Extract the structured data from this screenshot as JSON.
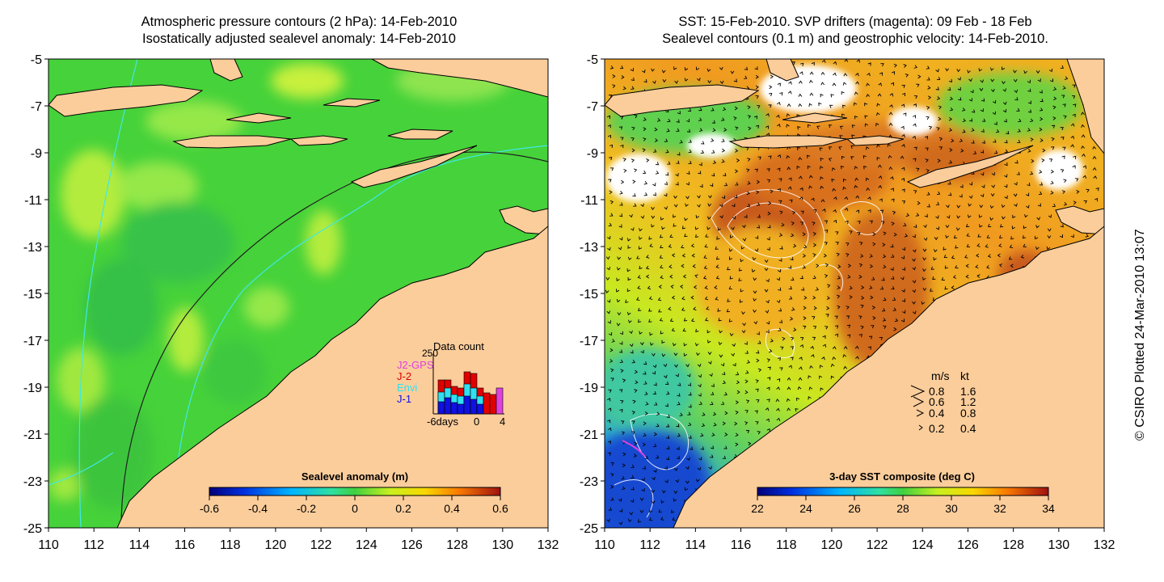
{
  "left_panel": {
    "title_line1": "Atmospheric pressure contours (2 hPa): 14-Feb-2010",
    "title_line2": "Isostatically adjusted sealevel anomaly: 14-Feb-2010",
    "colorbar": {
      "label": "Sealevel anomaly (m)",
      "ticks": [
        "-0.6",
        "-0.4",
        "-0.2",
        "0",
        "0.2",
        "0.4",
        "0.6"
      ],
      "range": [
        -0.6,
        0.6
      ]
    },
    "inset": {
      "top_value": "250",
      "title": "Data count",
      "legend": [
        {
          "name": "J2-GPS",
          "color": "#e040e0"
        },
        {
          "name": "J-2",
          "color": "#e00000"
        },
        {
          "name": "Envi",
          "color": "#30e0f0"
        },
        {
          "name": "J-1",
          "color": "#1010e0"
        }
      ],
      "x_labels": [
        "-6days",
        "0",
        "4"
      ]
    }
  },
  "right_panel": {
    "title_line1": "SST: 15-Feb-2010. SVP drifters (magenta): 09 Feb - 18 Feb",
    "title_line2": "Sealevel contours (0.1 m) and geostrophic velocity: 14-Feb-2010.",
    "colorbar": {
      "label": "3-day SST composite (deg C)",
      "ticks": [
        "22",
        "24",
        "26",
        "28",
        "30",
        "32",
        "34"
      ],
      "range": [
        22,
        34
      ]
    },
    "speed_key": {
      "headers": [
        "m/s",
        "kt"
      ],
      "rows": [
        {
          "ms": "0.8",
          "kt": "1.6"
        },
        {
          "ms": "0.6",
          "kt": "1.2"
        },
        {
          "ms": "0.4",
          "kt": "0.8"
        },
        {
          "ms": "0.2",
          "kt": "0.4"
        }
      ]
    }
  },
  "axes": {
    "lat_ticks": [
      "-5",
      "-7",
      "-9",
      "-11",
      "-13",
      "-15",
      "-17",
      "-19",
      "-21",
      "-23",
      "-25"
    ],
    "lon_ticks": [
      "110",
      "112",
      "114",
      "116",
      "118",
      "120",
      "122",
      "124",
      "126",
      "128",
      "130",
      "132"
    ]
  },
  "credit": "© CSIRO Plotted 24-Mar-2010 13:07",
  "colors": {
    "land": "#fbcd9b",
    "ocean_green": "#46d23a",
    "ocean_light": "#96e84a",
    "sst_orange": "#f0a020",
    "sst_red": "#c85a1e",
    "sst_blue": "#2060e0"
  }
}
